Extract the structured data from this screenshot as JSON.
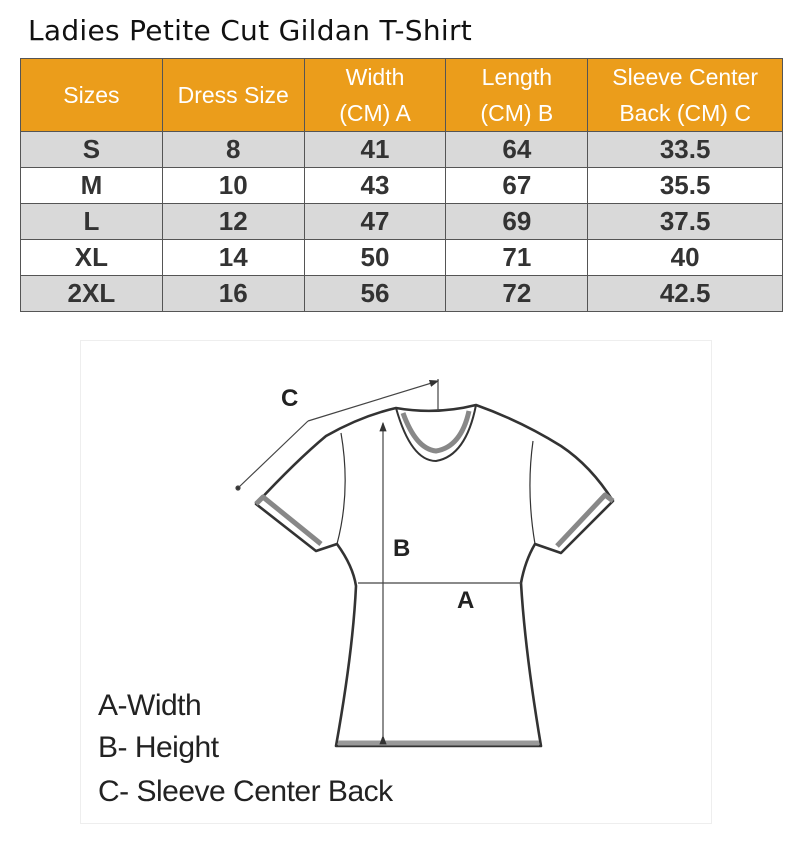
{
  "title": "Ladies Petite Cut Gildan T-Shirt",
  "header_color": "#EB9D1B",
  "table": {
    "headers": [
      "Sizes",
      "Dress Size",
      "Width (CM) A",
      "Length (CM) B",
      "Sleeve Center Back (CM) C"
    ],
    "header_lines": [
      [
        "Sizes"
      ],
      [
        "Dress Size"
      ],
      [
        "Width",
        "(CM) A"
      ],
      [
        "Length",
        "(CM) B"
      ],
      [
        "Sleeve Center",
        "Back (CM) C"
      ]
    ],
    "rows": [
      [
        "S",
        "8",
        "41",
        "64",
        "33.5"
      ],
      [
        "M",
        "10",
        "43",
        "67",
        "35.5"
      ],
      [
        "L",
        "12",
        "47",
        "69",
        "37.5"
      ],
      [
        "XL",
        "14",
        "50",
        "71",
        "40"
      ],
      [
        "2XL",
        "16",
        "56",
        "72",
        "42.5"
      ]
    ]
  },
  "diagram": {
    "labels": {
      "a": "A",
      "b": "B",
      "c": "C"
    },
    "legend": [
      "A-Width",
      "B- Height",
      "C- Sleeve Center Back"
    ]
  }
}
